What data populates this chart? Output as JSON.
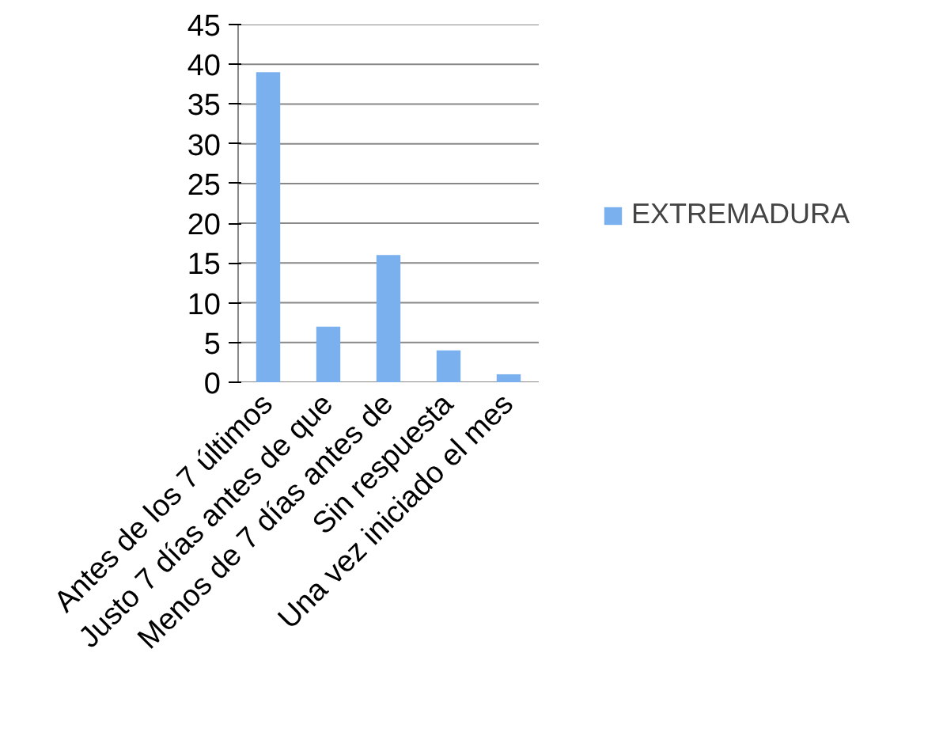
{
  "chart_data": {
    "type": "bar",
    "categories": [
      "Antes de los 7 últimos",
      "Justo 7 días antes de que",
      "Menos de 7 días antes de",
      "Sin respuesta",
      "Una vez iniciado el mes"
    ],
    "series": [
      {
        "name": "EXTREMADURA",
        "color": "#7bb0ee",
        "values": [
          39,
          7,
          16,
          4,
          1
        ]
      }
    ],
    "ylim": [
      0,
      45
    ],
    "yticks": [
      0,
      5,
      10,
      15,
      20,
      25,
      30,
      35,
      40,
      45
    ],
    "grid": "y",
    "legend": "right"
  }
}
